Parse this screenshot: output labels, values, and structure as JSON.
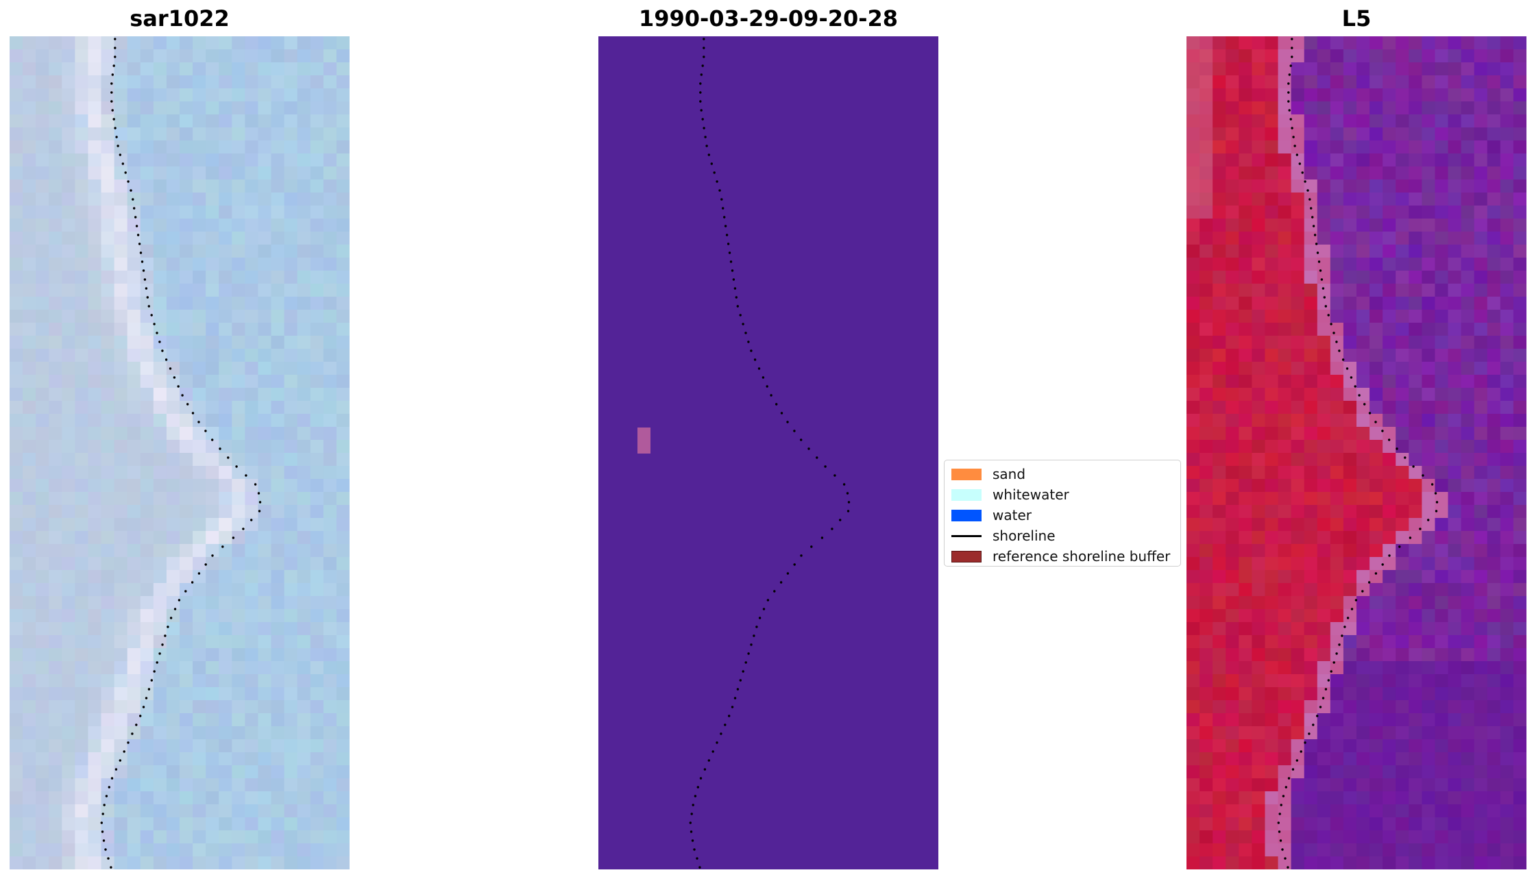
{
  "panels": [
    {
      "id": "rgb",
      "title": "sar1022"
    },
    {
      "id": "classified",
      "title": "1990-03-29-09-20-28"
    },
    {
      "id": "index",
      "title": "L5"
    }
  ],
  "legend": {
    "items": [
      {
        "label": "sand",
        "color": "#ff8c3f",
        "kind": "patch"
      },
      {
        "label": "whitewater",
        "color": "#c7fffd",
        "kind": "patch"
      },
      {
        "label": "water",
        "color": "#0055ff",
        "kind": "patch"
      },
      {
        "label": "shoreline",
        "color": "#000000",
        "kind": "line"
      },
      {
        "label": "reference shoreline buffer",
        "color": "#9b2c2c",
        "kind": "patch"
      }
    ]
  },
  "colors": {
    "classified_background": "#532397",
    "classified_buffer_patch": "#b05a9c",
    "shoreline_dots": "#000000"
  },
  "shoreline_profile": [
    0.31,
    0.31,
    0.3,
    0.3,
    0.31,
    0.32,
    0.34,
    0.36,
    0.37,
    0.38,
    0.39,
    0.4,
    0.41,
    0.43,
    0.45,
    0.48,
    0.51,
    0.55,
    0.6,
    0.66,
    0.73,
    0.74,
    0.68,
    0.6,
    0.55,
    0.5,
    0.47,
    0.45,
    0.43,
    0.41,
    0.39,
    0.36,
    0.33,
    0.3,
    0.28,
    0.27,
    0.28,
    0.3
  ]
}
